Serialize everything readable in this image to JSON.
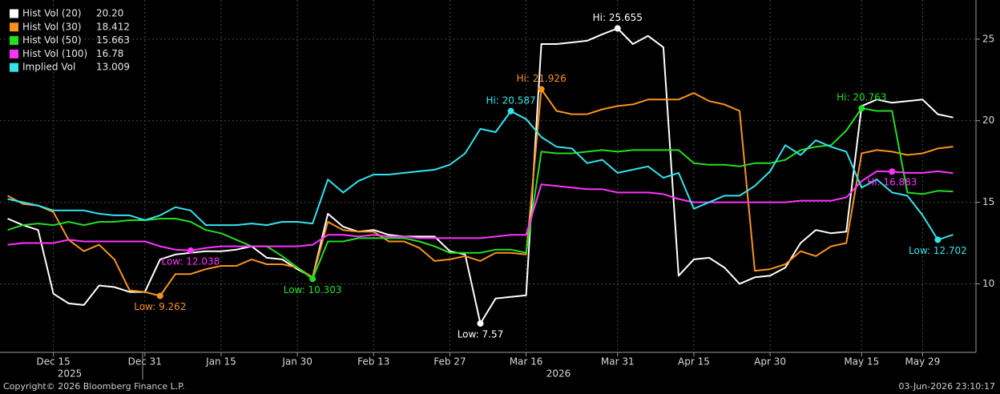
{
  "chart_data": {
    "type": "line",
    "footer_left": "Copyright© 2026 Bloomberg Finance L.P.",
    "footer_right": "03-Jun-2026 23:10:17",
    "x_groups": [
      "2025",
      "2026"
    ],
    "categories": [
      null,
      null,
      null,
      "Dec 15",
      null,
      null,
      null,
      null,
      null,
      "Dec 31",
      null,
      null,
      null,
      null,
      "Jan 15",
      null,
      null,
      null,
      null,
      "Jan 30",
      null,
      null,
      null,
      null,
      "Feb 13",
      null,
      null,
      null,
      null,
      "Feb 27",
      null,
      null,
      null,
      null,
      "Mar 16",
      null,
      null,
      null,
      null,
      null,
      "Mar 31",
      null,
      null,
      null,
      null,
      "Apr 15",
      null,
      null,
      null,
      null,
      "Apr 30",
      null,
      null,
      null,
      null,
      null,
      "May 15",
      null,
      null,
      null,
      "May 29",
      null,
      null
    ],
    "ylim": [
      5.8,
      27.4
    ],
    "yticks": [
      10,
      15,
      20,
      25
    ],
    "grid": true,
    "legend": "top-left",
    "series": [
      {
        "name": "Hist Vol (20)",
        "legend_value": "20.20",
        "color": "#ffffff",
        "values": [
          14.0,
          13.6,
          13.3,
          9.4,
          8.8,
          8.7,
          9.9,
          9.8,
          9.5,
          9.5,
          11.5,
          11.8,
          11.9,
          12.0,
          12.0,
          12.1,
          12.3,
          11.6,
          11.5,
          10.9,
          10.4,
          14.3,
          13.5,
          13.2,
          13.3,
          13.0,
          12.9,
          12.9,
          12.9,
          12.0,
          11.8,
          7.57,
          9.1,
          9.2,
          9.3,
          24.7,
          24.7,
          24.8,
          24.9,
          25.3,
          25.655,
          24.7,
          25.2,
          24.5,
          10.5,
          11.5,
          11.6,
          11.0,
          10.0,
          10.4,
          10.5,
          11.0,
          12.5,
          13.3,
          13.1,
          13.2,
          20.9,
          21.3,
          21.1,
          21.2,
          21.3,
          20.4,
          20.2
        ],
        "value_labels": [
          null,
          null,
          null,
          null,
          null,
          null,
          null,
          null,
          null,
          null,
          null,
          null,
          null,
          null,
          null,
          null,
          null,
          null,
          null,
          null,
          null,
          null,
          null,
          null,
          null,
          null,
          null,
          null,
          null,
          null,
          null,
          "Low: 7.57",
          null,
          null,
          null,
          null,
          null,
          null,
          null,
          null,
          "Hi: 25.655",
          null,
          null,
          null,
          null,
          null,
          null,
          null,
          null,
          null,
          null,
          null,
          null,
          null,
          null,
          null,
          null,
          null,
          null,
          null,
          null,
          null,
          null
        ]
      },
      {
        "name": "Hist Vol (30)",
        "legend_value": "18.412",
        "color": "#f7931e",
        "values": [
          15.4,
          14.9,
          14.8,
          14.4,
          12.7,
          12.0,
          12.4,
          11.5,
          9.6,
          9.5,
          9.262,
          10.6,
          10.6,
          10.9,
          11.1,
          11.1,
          11.5,
          11.2,
          11.2,
          11.0,
          10.4,
          13.8,
          13.3,
          13.2,
          13.2,
          12.6,
          12.6,
          12.2,
          11.4,
          11.5,
          11.7,
          11.4,
          11.9,
          11.9,
          11.8,
          21.926,
          20.6,
          20.4,
          20.4,
          20.7,
          20.9,
          21.0,
          21.3,
          21.3,
          21.3,
          21.7,
          21.2,
          21.0,
          20.6,
          10.8,
          10.9,
          11.2,
          12.0,
          11.7,
          12.3,
          12.5,
          18.0,
          18.2,
          18.1,
          17.9,
          18.0,
          18.3,
          18.412
        ],
        "value_labels": [
          null,
          null,
          null,
          null,
          null,
          null,
          null,
          null,
          null,
          null,
          "Low: 9.262",
          null,
          null,
          null,
          null,
          null,
          null,
          null,
          null,
          null,
          null,
          null,
          null,
          null,
          null,
          null,
          null,
          null,
          null,
          null,
          null,
          null,
          null,
          null,
          null,
          "Hi: 21.926",
          null,
          null,
          null,
          null,
          null,
          null,
          null,
          null,
          null,
          null,
          null,
          null,
          null,
          null,
          null,
          null,
          null,
          null,
          null,
          null,
          null,
          null,
          null,
          null,
          null,
          null,
          null
        ]
      },
      {
        "name": "Hist Vol (50)",
        "legend_value": "15.663",
        "color": "#22dd22",
        "values": [
          13.3,
          13.6,
          13.7,
          13.6,
          13.8,
          13.6,
          13.8,
          13.8,
          13.9,
          13.9,
          14.0,
          14.0,
          13.8,
          13.3,
          13.1,
          12.7,
          12.3,
          12.3,
          11.7,
          11.0,
          10.303,
          12.6,
          12.6,
          12.8,
          12.8,
          12.8,
          12.8,
          12.6,
          12.3,
          11.9,
          11.9,
          11.9,
          12.1,
          12.1,
          11.9,
          18.1,
          18.0,
          18.0,
          18.1,
          18.2,
          18.1,
          18.2,
          18.2,
          18.2,
          18.2,
          17.4,
          17.3,
          17.3,
          17.2,
          17.4,
          17.4,
          17.6,
          18.2,
          18.4,
          18.5,
          19.4,
          20.763,
          20.6,
          20.6,
          15.6,
          15.5,
          15.7,
          15.663
        ],
        "value_labels": [
          null,
          null,
          null,
          null,
          null,
          null,
          null,
          null,
          null,
          null,
          null,
          null,
          null,
          null,
          null,
          null,
          null,
          null,
          null,
          null,
          "Low: 10.303",
          null,
          null,
          null,
          null,
          null,
          null,
          null,
          null,
          null,
          null,
          null,
          null,
          null,
          null,
          null,
          null,
          null,
          null,
          null,
          null,
          null,
          null,
          null,
          null,
          null,
          null,
          null,
          null,
          null,
          null,
          null,
          null,
          null,
          null,
          null,
          "Hi: 20.763",
          null,
          null,
          null,
          null,
          null,
          null
        ]
      },
      {
        "name": "Hist Vol (100)",
        "legend_value": "16.78",
        "color": "#ff33ff",
        "values": [
          12.4,
          12.5,
          12.5,
          12.5,
          12.7,
          12.6,
          12.6,
          12.6,
          12.6,
          12.6,
          12.3,
          12.1,
          12.038,
          12.2,
          12.3,
          12.3,
          12.3,
          12.3,
          12.3,
          12.3,
          12.4,
          13.0,
          13.0,
          12.9,
          13.0,
          12.9,
          12.9,
          12.8,
          12.8,
          12.8,
          12.8,
          12.8,
          12.9,
          13.0,
          13.0,
          16.1,
          16.0,
          15.9,
          15.8,
          15.8,
          15.6,
          15.6,
          15.6,
          15.5,
          15.2,
          15.0,
          15.0,
          15.0,
          15.0,
          15.0,
          15.0,
          15.0,
          15.1,
          15.1,
          15.1,
          15.3,
          16.3,
          16.9,
          16.883,
          16.8,
          16.8,
          16.9,
          16.78
        ],
        "value_labels": [
          null,
          null,
          null,
          null,
          null,
          null,
          null,
          null,
          null,
          null,
          null,
          null,
          "Low: 12.038",
          null,
          null,
          null,
          null,
          null,
          null,
          null,
          null,
          null,
          null,
          null,
          null,
          null,
          null,
          null,
          null,
          null,
          null,
          null,
          null,
          null,
          null,
          null,
          null,
          null,
          null,
          null,
          null,
          null,
          null,
          null,
          null,
          null,
          null,
          null,
          null,
          null,
          null,
          null,
          null,
          null,
          null,
          null,
          null,
          null,
          "Hi: 16.883",
          null,
          null,
          null,
          null
        ]
      },
      {
        "name": "Implied Vol",
        "legend_value": "13.009",
        "color": "#33e4ee",
        "values": [
          15.2,
          15.0,
          14.8,
          14.5,
          14.5,
          14.5,
          14.3,
          14.2,
          14.2,
          13.9,
          14.2,
          14.7,
          14.5,
          13.6,
          13.6,
          13.6,
          13.7,
          13.6,
          13.8,
          13.8,
          13.7,
          16.4,
          15.6,
          16.3,
          16.7,
          16.7,
          16.8,
          16.9,
          17.0,
          17.3,
          18.0,
          19.5,
          19.3,
          20.587,
          20.1,
          19.0,
          18.4,
          18.3,
          17.4,
          17.6,
          16.8,
          17.0,
          17.2,
          16.5,
          16.8,
          14.6,
          15.0,
          15.4,
          15.4,
          16.0,
          16.9,
          18.5,
          17.9,
          18.8,
          18.4,
          18.1,
          15.9,
          16.4,
          15.6,
          15.4,
          14.2,
          12.702,
          13.009
        ],
        "value_labels": [
          null,
          null,
          null,
          null,
          null,
          null,
          null,
          null,
          null,
          null,
          null,
          null,
          null,
          null,
          null,
          null,
          null,
          null,
          null,
          null,
          null,
          null,
          null,
          null,
          null,
          null,
          null,
          null,
          null,
          null,
          null,
          null,
          null,
          "Hi: 20.587",
          null,
          null,
          null,
          null,
          null,
          null,
          null,
          null,
          null,
          null,
          null,
          null,
          null,
          null,
          null,
          null,
          null,
          null,
          null,
          null,
          null,
          null,
          null,
          null,
          null,
          null,
          null,
          "Low: 12.702",
          null
        ]
      }
    ]
  }
}
